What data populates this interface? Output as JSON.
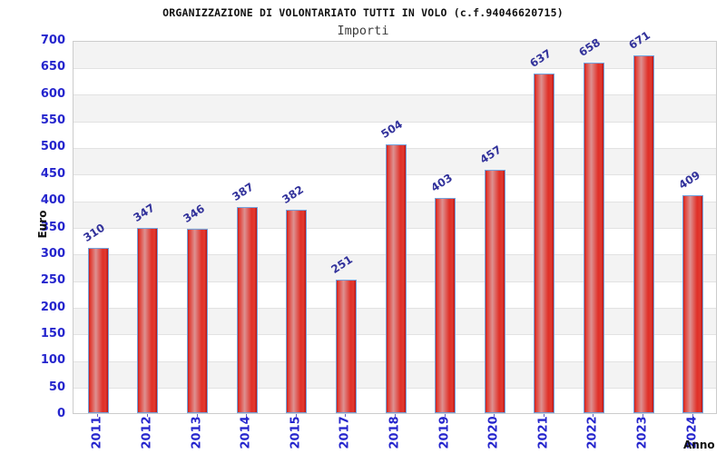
{
  "header": {
    "title": "ORGANIZZAZIONE DI VOLONTARIATO TUTTI IN VOLO (c.f.94046620715)",
    "subtitle": "Importi"
  },
  "chart_data": {
    "type": "bar",
    "title": "ORGANIZZAZIONE DI VOLONTARIATO TUTTI IN VOLO (c.f.94046620715)",
    "subtitle": "Importi",
    "categories": [
      "2011",
      "2012",
      "2013",
      "2014",
      "2015",
      "2017",
      "2018",
      "2019",
      "2020",
      "2021",
      "2022",
      "2023",
      "2024"
    ],
    "values": [
      310,
      347,
      346,
      387,
      382,
      251,
      504,
      403,
      457,
      637,
      658,
      671,
      409
    ],
    "xlabel": "Anno",
    "ylabel": "Euro",
    "ylim": [
      0,
      700
    ],
    "ytick_step": 50,
    "grid": "horizontal-bands-alternating",
    "legend": "none",
    "colors": {
      "bar_fill_edge": "#c21d1d",
      "bar_fill_highlight": "#dd9191",
      "bar_border": "#74a2dc",
      "tick_label": "#2525cd",
      "value_label": "#32329b",
      "band_gray": "#f3f3f3",
      "band_white": "#ffffff",
      "plot_border": "#cccccc",
      "title_color": "#111111",
      "subtitle_color": "#3c3c3c"
    }
  }
}
